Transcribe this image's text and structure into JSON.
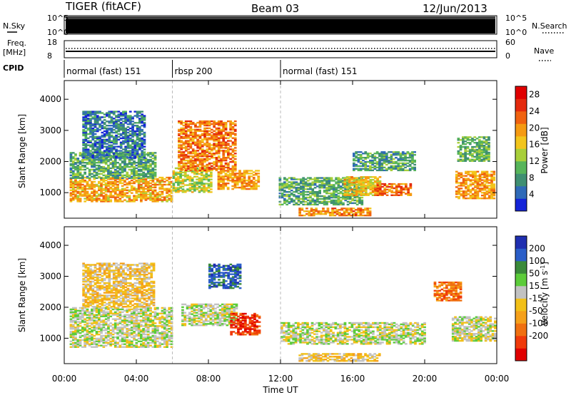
{
  "header": {
    "title": "TIGER (fitACF)",
    "beam": "Beam 03",
    "date": "12/Jun/2013"
  },
  "aux_panels": {
    "nsky_label": "N.Sky",
    "nsky_ticks": [
      "10^5",
      "10^0"
    ],
    "nsearch_label": "N.Search",
    "nsearch_ticks": [
      "10^5",
      "10^0"
    ],
    "freq_label": "Freq.",
    "freq_unit": "[MHz]",
    "freq_ticks": [
      "18",
      "8"
    ],
    "nave_label": "Nave",
    "nave_ticks": [
      "60",
      "0"
    ],
    "cpid_label": "CPID",
    "cpid_segments": [
      {
        "label": "normal (fast) 151",
        "start_hour": 0,
        "end_hour": 6
      },
      {
        "label": "rbsp 200",
        "start_hour": 6,
        "end_hour": 12
      },
      {
        "label": "normal (fast) 151",
        "start_hour": 12,
        "end_hour": 24
      }
    ]
  },
  "x_axis": {
    "label": "Time UT",
    "ticks": [
      "00:00",
      "04:00",
      "08:00",
      "12:00",
      "16:00",
      "20:00",
      "00:00"
    ],
    "tick_hours": [
      0,
      4,
      8,
      12,
      16,
      20,
      24
    ],
    "range_hours": [
      0,
      24
    ]
  },
  "chart_data": [
    {
      "type": "heatmap",
      "panel": "power",
      "xlabel": "Time UT",
      "ylabel": "Slant Range [km]",
      "yticks": [
        1000,
        2000,
        3000,
        4000
      ],
      "ylim": [
        180,
        4600
      ],
      "xlim_hours": [
        0,
        24
      ],
      "colorbar": {
        "label": "Power [dB]",
        "ticks": [
          4,
          8,
          12,
          16,
          20,
          24,
          28
        ],
        "range": [
          0,
          30
        ],
        "colors": [
          "#1424d8",
          "#2f6ab8",
          "#3f8f72",
          "#57b55a",
          "#a8cf3a",
          "#f2c51c",
          "#f59a12",
          "#f06210",
          "#e42a0d",
          "#e00000"
        ]
      },
      "regions": [
        {
          "t0": 0.3,
          "t1": 5.9,
          "r0": 700,
          "r1": 1500,
          "v": 19
        },
        {
          "t0": 0.3,
          "t1": 5.0,
          "r0": 1450,
          "r1": 2300,
          "v": 9
        },
        {
          "t0": 1.0,
          "t1": 4.5,
          "r0": 2100,
          "r1": 3600,
          "v": 5
        },
        {
          "t0": 6.0,
          "t1": 8.2,
          "r0": 1000,
          "r1": 1800,
          "v": 14
        },
        {
          "t0": 6.3,
          "t1": 9.5,
          "r0": 1700,
          "r1": 3300,
          "v": 22
        },
        {
          "t0": 8.5,
          "t1": 10.8,
          "r0": 1100,
          "r1": 1700,
          "v": 20
        },
        {
          "t0": 11.9,
          "t1": 16.5,
          "r0": 600,
          "r1": 1500,
          "v": 9
        },
        {
          "t0": 15.5,
          "t1": 17.5,
          "r0": 900,
          "r1": 1500,
          "v": 17
        },
        {
          "t0": 17.2,
          "t1": 19.2,
          "r0": 900,
          "r1": 1300,
          "v": 23
        },
        {
          "t0": 16.0,
          "t1": 19.5,
          "r0": 1700,
          "r1": 2300,
          "v": 8
        },
        {
          "t0": 13.0,
          "t1": 17.0,
          "r0": 250,
          "r1": 500,
          "v": 21
        },
        {
          "t0": 21.7,
          "t1": 23.9,
          "r0": 800,
          "r1": 1700,
          "v": 20
        },
        {
          "t0": 21.8,
          "t1": 23.5,
          "r0": 2000,
          "r1": 2800,
          "v": 10
        }
      ]
    },
    {
      "type": "heatmap",
      "panel": "velocity",
      "xlabel": "Time UT",
      "ylabel": "Slant Range [km]",
      "yticks": [
        1000,
        2000,
        3000,
        4000
      ],
      "ylim": [
        180,
        4600
      ],
      "xlim_hours": [
        0,
        24
      ],
      "colorbar": {
        "label": "Velocity [m s^-1]",
        "ticks": [
          200,
          100,
          50,
          15,
          -15,
          -50,
          -100,
          -200
        ],
        "colors": [
          "#1f2fb0",
          "#2a5ec8",
          "#3a8a3a",
          "#5ccc3a",
          "#c2c2c2",
          "#f2c018",
          "#f5a01a",
          "#f07010",
          "#f03a0a",
          "#e00000"
        ]
      },
      "regions": [
        {
          "t0": 0.3,
          "t1": 5.9,
          "r0": 700,
          "r1": 2000,
          "v": 4
        },
        {
          "t0": 1.0,
          "t1": 5.0,
          "r0": 2000,
          "r1": 3400,
          "v": 5
        },
        {
          "t0": 6.5,
          "t1": 9.5,
          "r0": 1400,
          "r1": 2100,
          "v": 4
        },
        {
          "t0": 8.0,
          "t1": 9.8,
          "r0": 2600,
          "r1": 3400,
          "v": 1
        },
        {
          "t0": 9.2,
          "t1": 10.8,
          "r0": 1100,
          "r1": 1800,
          "v": 8
        },
        {
          "t0": 12.0,
          "t1": 20.0,
          "r0": 800,
          "r1": 1500,
          "v": 4
        },
        {
          "t0": 13.0,
          "t1": 17.5,
          "r0": 250,
          "r1": 500,
          "v": 5
        },
        {
          "t0": 21.5,
          "t1": 23.9,
          "r0": 900,
          "r1": 1700,
          "v": 4
        },
        {
          "t0": 20.5,
          "t1": 22.0,
          "r0": 2200,
          "r1": 2800,
          "v": 7
        }
      ]
    }
  ]
}
